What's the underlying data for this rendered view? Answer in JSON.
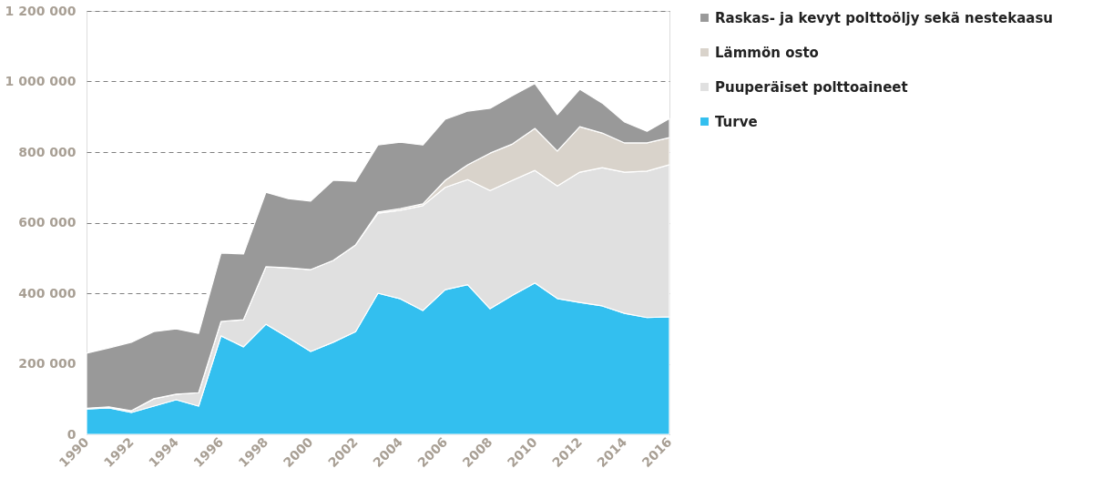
{
  "chart_data": {
    "type": "area",
    "stacked": true,
    "x": [
      1990,
      1991,
      1992,
      1993,
      1994,
      1995,
      1996,
      1997,
      1998,
      1999,
      2000,
      2001,
      2002,
      2003,
      2004,
      2005,
      2006,
      2007,
      2008,
      2009,
      2010,
      2011,
      2012,
      2013,
      2014,
      2015,
      2016
    ],
    "xlim": [
      1990,
      2016
    ],
    "xticks": [
      1990,
      1992,
      1994,
      1996,
      1998,
      2000,
      2002,
      2004,
      2006,
      2008,
      2010,
      2012,
      2014,
      2016
    ],
    "ylim": [
      0,
      1200000
    ],
    "yticks": [
      {
        "value": 0,
        "label": "0"
      },
      {
        "value": 200000,
        "label": "200 000"
      },
      {
        "value": 400000,
        "label": "400 000"
      },
      {
        "value": 600000,
        "label": "600 000"
      },
      {
        "value": 800000,
        "label": "800 000"
      },
      {
        "value": 1000000,
        "label": "1 000 000"
      },
      {
        "value": 1200000,
        "label": "1 200 000"
      }
    ],
    "grid": "y",
    "legend": "right",
    "series": [
      {
        "name": "Turve",
        "color": "#33bfef",
        "values": [
          72000,
          75000,
          62000,
          80000,
          98000,
          80000,
          279000,
          248000,
          312000,
          274000,
          235000,
          261000,
          291000,
          400000,
          384000,
          351000,
          410000,
          424000,
          356000,
          394000,
          429000,
          385000,
          374000,
          364000,
          343000,
          331000,
          333000
        ]
      },
      {
        "name": "Puuperäiset polttoaineet",
        "color": "#e0e0e0",
        "values": [
          2000,
          3000,
          5000,
          21000,
          16000,
          38000,
          41000,
          77000,
          163000,
          198000,
          232000,
          232000,
          246000,
          227000,
          251000,
          297000,
          290000,
          298000,
          335000,
          326000,
          319000,
          319000,
          369000,
          392000,
          400000,
          415000,
          431000
        ]
      },
      {
        "name": "Lämmön osto",
        "color": "#d9d3cb",
        "values": [
          0,
          0,
          0,
          0,
          0,
          0,
          0,
          0,
          0,
          0,
          0,
          0,
          0,
          3000,
          5000,
          5000,
          20000,
          42000,
          106000,
          103000,
          119000,
          99000,
          129000,
          98000,
          83000,
          80000,
          77000
        ]
      },
      {
        "name": "Raskas- ja kevyt polttoöljy sekä nestekaasu",
        "color": "#999999",
        "values": [
          156000,
          167000,
          194000,
          190000,
          185000,
          168000,
          194000,
          186000,
          211000,
          196000,
          194000,
          227000,
          180000,
          190000,
          188000,
          167000,
          173000,
          152000,
          127000,
          137000,
          127000,
          103000,
          106000,
          85000,
          59000,
          33000,
          54000
        ]
      }
    ]
  }
}
